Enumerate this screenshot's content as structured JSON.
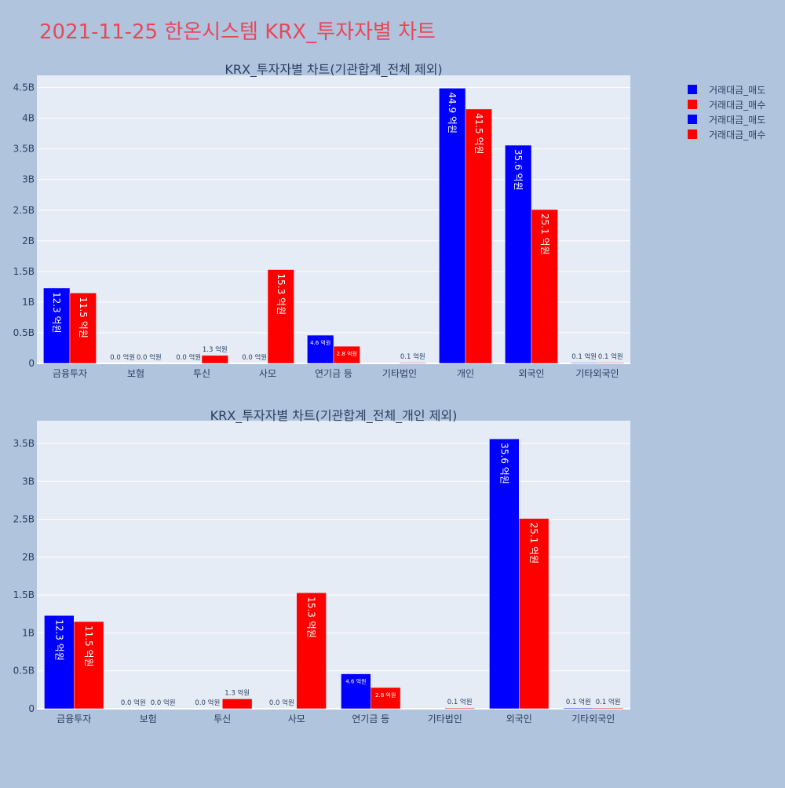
{
  "page_title": "2021-11-25 한온시스템 KRX_투자자별 차트",
  "colors": {
    "page_bg": "#b0c4de",
    "plot_bg": "#e5ecf6",
    "grid": "#ffffff",
    "title": "#e8475a",
    "text": "#2a3f5f",
    "sell": "#0000ff",
    "buy": "#ff0000"
  },
  "legend": {
    "position": "top-right",
    "entries": [
      {
        "label": "거래대금_매도",
        "color": "#0000ff"
      },
      {
        "label": "거래대금_매수",
        "color": "#ff0000"
      },
      {
        "label": "거래대금_매도",
        "color": "#0000ff"
      },
      {
        "label": "거래대금_매수",
        "color": "#ff0000"
      }
    ]
  },
  "chart_data": [
    {
      "type": "bar",
      "title": "KRX_투자자별 차트(기관합계_전체 제외)",
      "categories": [
        "금융투자",
        "보험",
        "투신",
        "사모",
        "연기금 등",
        "기타법인",
        "개인",
        "외국인",
        "기타외국인"
      ],
      "ylim": [
        0,
        4.7
      ],
      "yticks": [
        0,
        0.5,
        1,
        1.5,
        2,
        2.5,
        3,
        3.5,
        4,
        4.5
      ],
      "ytick_labels": [
        "0",
        "0.5B",
        "1B",
        "1.5B",
        "2B",
        "2.5B",
        "3B",
        "3.5B",
        "4B",
        "4.5B"
      ],
      "grid": true,
      "series": [
        {
          "name": "거래대금_매도",
          "color": "#0000ff",
          "values": [
            1.23,
            0.0,
            0.0,
            0.0,
            0.46,
            0,
            4.49,
            3.56,
            0.01
          ],
          "labels": [
            "12.3 억원",
            "0.0 억원",
            "0.0 억원",
            "0.0 억원",
            "4.6 억원",
            "",
            "44.9 억원",
            "35.6 억원",
            "0.1 억원"
          ]
        },
        {
          "name": "거래대금_매수",
          "color": "#ff0000",
          "values": [
            1.15,
            0.0,
            0.13,
            1.53,
            0.28,
            0.01,
            4.15,
            2.51,
            0.01
          ],
          "labels": [
            "11.5 억원",
            "0.0 억원",
            "1.3 억원",
            "15.3 억원",
            "2.8 억원",
            "0.1 억원",
            "41.5 억원",
            "25.1 억원",
            "0.1 억원"
          ]
        }
      ]
    },
    {
      "type": "bar",
      "title": "KRX_투자자별 차트(기관합계_전체_개인 제외)",
      "categories": [
        "금융투자",
        "보험",
        "투신",
        "사모",
        "연기금 등",
        "기타법인",
        "외국인",
        "기타외국인"
      ],
      "ylim": [
        0,
        3.8
      ],
      "yticks": [
        0,
        0.5,
        1,
        1.5,
        2,
        2.5,
        3,
        3.5
      ],
      "ytick_labels": [
        "0",
        "0.5B",
        "1B",
        "1.5B",
        "2B",
        "2.5B",
        "3B",
        "3.5B"
      ],
      "grid": true,
      "series": [
        {
          "name": "거래대금_매도",
          "color": "#0000ff",
          "values": [
            1.23,
            0.0,
            0.0,
            0.0,
            0.46,
            0,
            3.56,
            0.01
          ],
          "labels": [
            "12.3 억원",
            "0.0 억원",
            "0.0 억원",
            "0.0 억원",
            "4.6 억원",
            "",
            "35.6 억원",
            "0.1 억원"
          ]
        },
        {
          "name": "거래대금_매수",
          "color": "#ff0000",
          "values": [
            1.15,
            0.0,
            0.13,
            1.53,
            0.28,
            0.01,
            2.51,
            0.01
          ],
          "labels": [
            "11.5 억원",
            "0.0 억원",
            "1.3 억원",
            "15.3 억원",
            "2.8 억원",
            "0.1 억원",
            "25.1 억원",
            "0.1 억원"
          ]
        }
      ]
    }
  ]
}
